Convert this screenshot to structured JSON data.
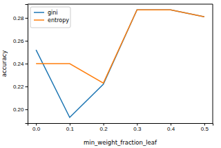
{
  "chart_data": {
    "type": "line",
    "x_label": "min_weight_fraction_leaf",
    "y_label": "accuracy",
    "x": [
      0.0,
      0.1,
      0.2,
      0.3,
      0.4,
      0.5
    ],
    "series": [
      {
        "name": "gini",
        "color": "#1f77b4",
        "values": [
          0.252,
          0.193,
          0.222,
          0.287,
          0.287,
          0.281
        ]
      },
      {
        "name": "entropy",
        "color": "#ff7f0e",
        "values": [
          0.24,
          0.24,
          0.223,
          0.287,
          0.287,
          0.281
        ]
      }
    ],
    "xlim": [
      -0.025,
      0.525
    ],
    "xticks": [
      {
        "value": 0,
        "label": "0.0"
      },
      0.1,
      0.2,
      0.3,
      0.4,
      0.5
    ],
    "ylim": [
      0.188,
      0.292
    ],
    "yticks": [
      {
        "value": 0.2,
        "label": "0.20"
      },
      0.22,
      0.24,
      0.26,
      0.28
    ],
    "legend": "upper left"
  }
}
